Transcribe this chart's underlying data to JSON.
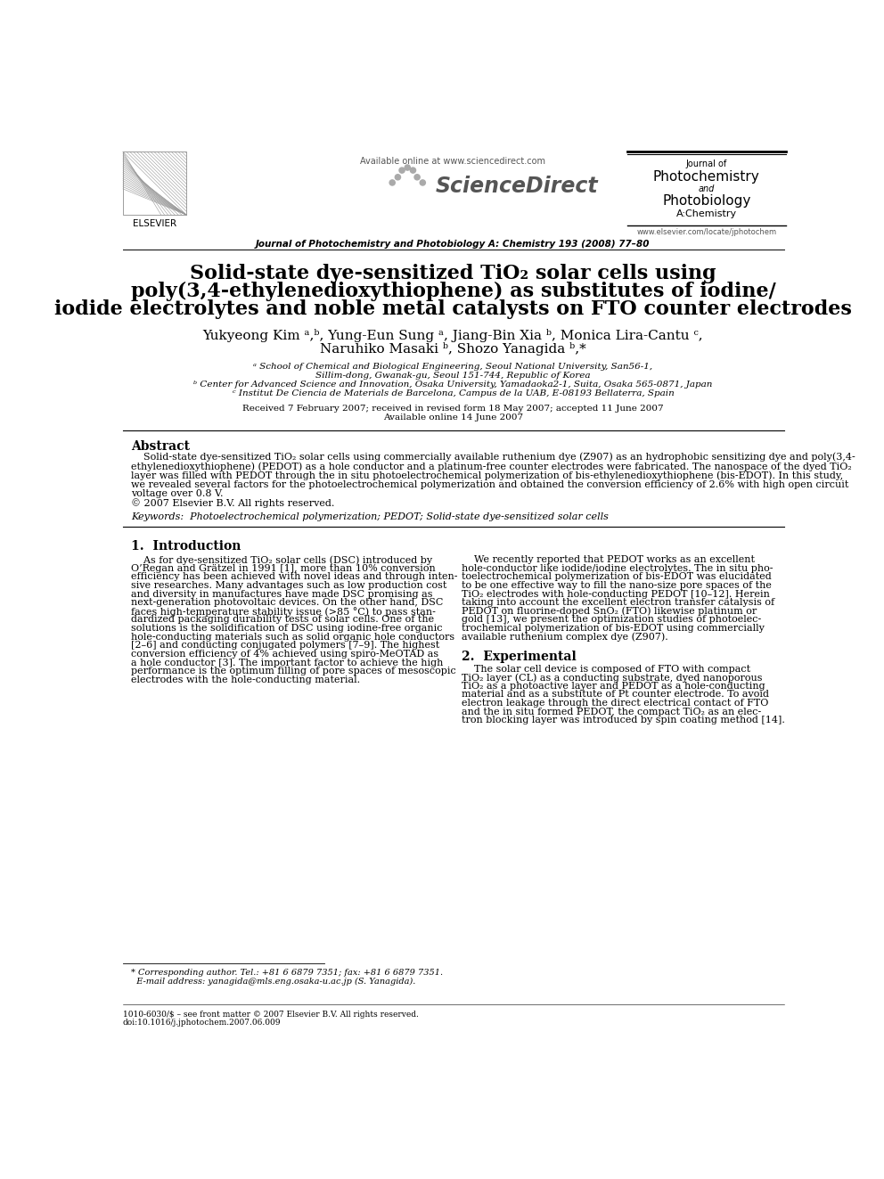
{
  "bg_color": "#ffffff",
  "available_online": "Available online at www.sciencedirect.com",
  "journal_line": "Journal of Photochemistry and Photobiology A: Chemistry 193 (2008) 77–80",
  "elsevier_text": "ELSEVIER",
  "website": "www.elsevier.com/locate/jphotochem",
  "title_line1": "Solid-state dye-sensitized TiO₂ solar cells using",
  "title_line2": "poly(3,4-ethylenedioxythiophene) as substitutes of iodine/",
  "title_line3": "iodide electrolytes and noble metal catalysts on FTO counter electrodes",
  "author_line1": "Yukyeong Kim ᵃ,ᵇ, Yung-Eun Sung ᵃ, Jiang-Bin Xia ᵇ, Monica Lira-Cantu ᶜ,",
  "author_line2": "Naruhiko Masaki ᵇ, Shozo Yanagida ᵇ,*",
  "affil_a1": "ᵃ School of Chemical and Biological Engineering, Seoul National University, San56-1,",
  "affil_a2": "Sillim-dong, Gwanak-gu, Seoul 151-744, Republic of Korea",
  "affil_b": "ᵇ Center for Advanced Science and Innovation, Osaka University, Yamadaoka2-1, Suita, Osaka 565-0871, Japan",
  "affil_c": "ᶜ Institut De Ciencia de Materials de Barcelona, Campus de la UAB, E-08193 Bellaterra, Spain",
  "received": "Received 7 February 2007; received in revised form 18 May 2007; accepted 11 June 2007",
  "available_online2": "Available online 14 June 2007",
  "abstract_title": "Abstract",
  "abstract_lines": [
    "    Solid-state dye-sensitized TiO₂ solar cells using commercially available ruthenium dye (Z907) as an hydrophobic sensitizing dye and poly(3,4-",
    "ethylenedioxythiophene) (PEDOT) as a hole conductor and a platinum-free counter electrodes were fabricated. The nanospace of the dyed TiO₂",
    "layer was filled with PEDOT through the in situ photoelectrochemical polymerization of bis-ethylenedioxythiophene (bis-EDOT). In this study,",
    "we revealed several factors for the photoelectrochemical polymerization and obtained the conversion efficiency of 2.6% with high open circuit",
    "voltage over 0.8 V.",
    "© 2007 Elsevier B.V. All rights reserved."
  ],
  "keywords": "Keywords:  Photoelectrochemical polymerization; PEDOT; Solid-state dye-sensitized solar cells",
  "sec1_title": "1.  Introduction",
  "sec1_left": [
    "    As for dye-sensitized TiO₂ solar cells (DSC) introduced by",
    "O’Regan and Grätzel in 1991 [1], more than 10% conversion",
    "efficiency has been achieved with novel ideas and through inten-",
    "sive researches. Many advantages such as low production cost",
    "and diversity in manufactures have made DSC promising as",
    "next-generation photovoltaic devices. On the other hand, DSC",
    "faces high-temperature stability issue (>85 °C) to pass stan-",
    "dardized packaging durability tests of solar cells. One of the",
    "solutions is the solidification of DSC using iodine-free organic",
    "hole-conducting materials such as solid organic hole conductors",
    "[2–6] and conducting conjugated polymers [7–9]. The highest",
    "conversion efficiency of 4% achieved using spiro-MeOTAD as",
    "a hole conductor [3]. The important factor to achieve the high",
    "performance is the optimum filling of pore spaces of mesoscopic",
    "electrodes with the hole-conducting material."
  ],
  "sec1_right": [
    "    We recently reported that PEDOT works as an excellent",
    "hole-conductor like iodide/iodine electrolytes. The in situ pho-",
    "toelectrochemical polymerization of bis-EDOT was elucidated",
    "to be one effective way to fill the nano-size pore spaces of the",
    "TiO₂ electrodes with hole-conducting PEDOT [10–12]. Herein",
    "taking into account the excellent electron transfer catalysis of",
    "PEDOT on fluorine-doped SnO₂ (FTO) likewise platinum or",
    "gold [13], we present the optimization studies of photoelec-",
    "trochemical polymerization of bis-EDOT using commercially",
    "available ruthenium complex dye (Z907)."
  ],
  "sec2_title": "2.  Experimental",
  "sec2_right": [
    "    The solar cell device is composed of FTO with compact",
    "TiO₂ layer (CL) as a conducting substrate, dyed nanoporous",
    "TiO₂ as a photoactive layer and PEDOT as a hole-conducting",
    "material and as a substitute of Pt counter electrode. To avoid",
    "electron leakage through the direct electrical contact of FTO",
    "and the in situ formed PEDOT, the compact TiO₂ as an elec-",
    "tron blocking layer was introduced by spin coating method [14]."
  ],
  "footnote1": "* Corresponding author. Tel.: +81 6 6879 7351; fax: +81 6 6879 7351.",
  "footnote2": "  E-mail address: yanagida@mls.eng.osaka-u.ac.jp (S. Yanagida).",
  "footer_left": "1010-6030/$ – see front matter © 2007 Elsevier B.V. All rights reserved.",
  "footer_doi": "doi:10.1016/j.jphotochem.2007.06.009"
}
